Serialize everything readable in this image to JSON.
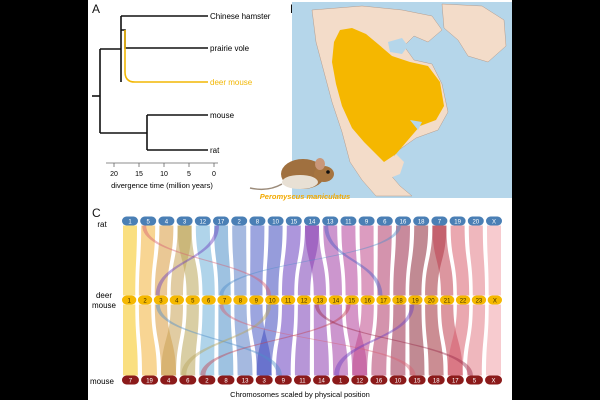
{
  "panels": {
    "a": "A",
    "b": "B",
    "c": "C"
  },
  "tree": {
    "species": [
      {
        "name": "Chinese hamster",
        "color": "#111111"
      },
      {
        "name": "prairie vole",
        "color": "#111111"
      },
      {
        "name": "deer mouse",
        "color": "#f2b705"
      },
      {
        "name": "mouse",
        "color": "#111111"
      },
      {
        "name": "rat",
        "color": "#111111"
      }
    ],
    "axis": {
      "label": "divergence time (million years)",
      "ticks": [
        "20",
        "15",
        "10",
        "5",
        "0"
      ]
    }
  },
  "map": {
    "caption": "Peromyscus maniculatus",
    "range_color": "#f5b700"
  },
  "synteny": {
    "row_labels": {
      "top": "rat",
      "middle": "deer mouse",
      "bottom": "mouse"
    },
    "xlabel": "Chromosomes scaled by physical position",
    "rat": [
      "1",
      "5",
      "4",
      "3",
      "12",
      "17",
      "2",
      "8",
      "10",
      "15",
      "14",
      "13",
      "11",
      "9",
      "6",
      "16",
      "18",
      "7",
      "19",
      "20",
      "X"
    ],
    "deer": [
      "1",
      "2",
      "3",
      "4",
      "5",
      "6",
      "7",
      "8",
      "9",
      "10",
      "11",
      "12",
      "13",
      "14",
      "15",
      "16",
      "17",
      "18",
      "19",
      "20",
      "21",
      "22",
      "23",
      "X"
    ],
    "mouse": [
      "7",
      "19",
      "4",
      "6",
      "2",
      "8",
      "13",
      "3",
      "9",
      "11",
      "14",
      "1",
      "12",
      "16",
      "10",
      "15",
      "18",
      "17",
      "5",
      "X"
    ]
  }
}
